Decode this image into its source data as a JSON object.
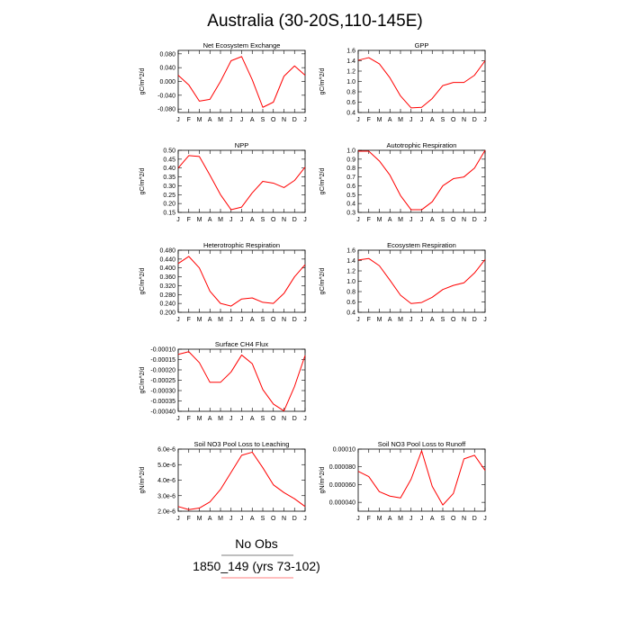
{
  "title": "Australia (30-20S,110-145E)",
  "footer": {
    "no_obs": "No Obs",
    "model": "1850_149 (yrs 73-102)",
    "legend_colors": {
      "obs": "#000000",
      "model": "#ff0000"
    }
  },
  "series_color": "#ff0000",
  "chart_data": [
    {
      "type": "line",
      "title": "Net Ecosystem Exchange",
      "ylabel": "gC/m^2/d",
      "categories": [
        "J",
        "F",
        "M",
        "A",
        "M",
        "J",
        "J",
        "A",
        "S",
        "O",
        "N",
        "D",
        "J"
      ],
      "ylim": [
        -0.09,
        0.09
      ],
      "yticks": [
        -0.08,
        -0.04,
        0.0,
        0.04,
        0.08
      ],
      "ytick_labels": [
        "-0.080",
        "-0.040",
        "0.000",
        "0.040",
        "0.080"
      ],
      "values": [
        0.018,
        -0.01,
        -0.057,
        -0.052,
        0.0,
        0.06,
        0.072,
        0.005,
        -0.075,
        -0.06,
        0.015,
        0.045,
        0.018
      ]
    },
    {
      "type": "line",
      "title": "GPP",
      "ylabel": "gC/m^2/d",
      "categories": [
        "J",
        "F",
        "M",
        "A",
        "M",
        "J",
        "J",
        "A",
        "S",
        "O",
        "N",
        "D",
        "J"
      ],
      "ylim": [
        0.4,
        1.6
      ],
      "yticks": [
        0.4,
        0.6,
        0.8,
        1.0,
        1.2,
        1.4,
        1.6
      ],
      "ytick_labels": [
        "0.4",
        "0.6",
        "0.8",
        "1.0",
        "1.2",
        "1.4",
        "1.6"
      ],
      "values": [
        1.41,
        1.46,
        1.34,
        1.07,
        0.72,
        0.49,
        0.5,
        0.67,
        0.92,
        0.98,
        0.98,
        1.12,
        1.4
      ]
    },
    {
      "type": "line",
      "title": "NPP",
      "ylabel": "gC/m^2/d",
      "categories": [
        "J",
        "F",
        "M",
        "A",
        "M",
        "J",
        "J",
        "A",
        "S",
        "O",
        "N",
        "D",
        "J"
      ],
      "ylim": [
        0.15,
        0.5
      ],
      "yticks": [
        0.15,
        0.2,
        0.25,
        0.3,
        0.35,
        0.4,
        0.45,
        0.5
      ],
      "ytick_labels": [
        "0.15",
        "0.20",
        "0.25",
        "0.30",
        "0.35",
        "0.40",
        "0.45",
        "0.50"
      ],
      "values": [
        0.4,
        0.47,
        0.465,
        0.36,
        0.25,
        0.165,
        0.18,
        0.26,
        0.325,
        0.315,
        0.29,
        0.33,
        0.405
      ]
    },
    {
      "type": "line",
      "title": "Autotrophic Respiration",
      "ylabel": "gC/m^2/d",
      "categories": [
        "J",
        "F",
        "M",
        "A",
        "M",
        "J",
        "J",
        "A",
        "S",
        "O",
        "N",
        "D",
        "J"
      ],
      "ylim": [
        0.3,
        1.0
      ],
      "yticks": [
        0.3,
        0.4,
        0.5,
        0.6,
        0.7,
        0.8,
        0.9,
        1.0
      ],
      "ytick_labels": [
        "0.3",
        "0.4",
        "0.5",
        "0.6",
        "0.7",
        "0.8",
        "0.9",
        "1.0"
      ],
      "values": [
        0.99,
        0.99,
        0.88,
        0.72,
        0.49,
        0.33,
        0.33,
        0.42,
        0.6,
        0.68,
        0.7,
        0.8,
        1.0
      ]
    },
    {
      "type": "line",
      "title": "Heterotrophic Respiration",
      "ylabel": "gC/m^2/d",
      "categories": [
        "J",
        "F",
        "M",
        "A",
        "M",
        "J",
        "J",
        "A",
        "S",
        "O",
        "N",
        "D",
        "J"
      ],
      "ylim": [
        0.2,
        0.48
      ],
      "yticks": [
        0.2,
        0.24,
        0.28,
        0.32,
        0.36,
        0.4,
        0.44,
        0.48
      ],
      "ytick_labels": [
        "0.200",
        "0.240",
        "0.280",
        "0.320",
        "0.360",
        "0.400",
        "0.440",
        "0.480"
      ],
      "values": [
        0.42,
        0.452,
        0.4,
        0.295,
        0.24,
        0.228,
        0.26,
        0.265,
        0.245,
        0.24,
        0.285,
        0.36,
        0.415
      ]
    },
    {
      "type": "line",
      "title": "Ecosystem Respiration",
      "ylabel": "gC/m^2/d",
      "categories": [
        "J",
        "F",
        "M",
        "A",
        "M",
        "J",
        "J",
        "A",
        "S",
        "O",
        "N",
        "D",
        "J"
      ],
      "ylim": [
        0.4,
        1.6
      ],
      "yticks": [
        0.4,
        0.6,
        0.8,
        1.0,
        1.2,
        1.4,
        1.6
      ],
      "ytick_labels": [
        "0.4",
        "0.6",
        "0.8",
        "1.0",
        "1.2",
        "1.4",
        "1.6"
      ],
      "values": [
        1.41,
        1.44,
        1.3,
        1.02,
        0.73,
        0.57,
        0.59,
        0.69,
        0.84,
        0.92,
        0.97,
        1.16,
        1.42
      ]
    },
    {
      "type": "line",
      "title": "Surface CH4 Flux",
      "ylabel": "gC/m^2/d",
      "categories": [
        "J",
        "F",
        "M",
        "A",
        "M",
        "J",
        "J",
        "A",
        "S",
        "O",
        "N",
        "D",
        "J"
      ],
      "ylim": [
        -0.0004,
        -0.0001
      ],
      "yticks": [
        -0.0004,
        -0.00035,
        -0.0003,
        -0.00025,
        -0.0002,
        -0.00015,
        -0.0001
      ],
      "ytick_labels": [
        "-0.00040",
        "-0.00035",
        "-0.00030",
        "-0.00025",
        "-0.00020",
        "-0.00015",
        "-0.00010"
      ],
      "values": [
        -0.000125,
        -0.000112,
        -0.000165,
        -0.00026,
        -0.00026,
        -0.00021,
        -0.000128,
        -0.00017,
        -0.000295,
        -0.000365,
        -0.000398,
        -0.00028,
        -0.00013
      ]
    },
    {
      "type": "line",
      "title": "Soil NO3 Pool Loss to Leaching",
      "ylabel": "gN/m^2/d",
      "categories": [
        "J",
        "F",
        "M",
        "A",
        "M",
        "J",
        "J",
        "A",
        "S",
        "O",
        "N",
        "D",
        "J"
      ],
      "ylim": [
        2e-06,
        6e-06
      ],
      "yticks": [
        2e-06,
        3e-06,
        4e-06,
        5e-06,
        6e-06
      ],
      "ytick_labels": [
        "2.0e-6",
        "3.0e-6",
        "4.0e-6",
        "5.0e-6",
        "6.0e-6"
      ],
      "values": [
        2.3e-06,
        2.1e-06,
        2.2e-06,
        2.6e-06,
        3.4e-06,
        4.5e-06,
        5.6e-06,
        5.8e-06,
        4.8e-06,
        3.7e-06,
        3.2e-06,
        2.8e-06,
        2.3e-06
      ]
    },
    {
      "type": "line",
      "title": "Soil NO3 Pool Loss to Runoff",
      "ylabel": "gN/m^2/d",
      "categories": [
        "J",
        "F",
        "M",
        "A",
        "M",
        "J",
        "J",
        "A",
        "S",
        "O",
        "N",
        "D",
        "J"
      ],
      "ylim": [
        3e-05,
        0.0001
      ],
      "yticks": [
        4e-05,
        6e-05,
        8e-05,
        0.0001
      ],
      "ytick_labels": [
        "0.000040",
        "0.000060",
        "0.000080",
        "0.00010"
      ],
      "values": [
        7.5e-05,
        6.9e-05,
        5.2e-05,
        4.7e-05,
        4.5e-05,
        6.6e-05,
        9.8e-05,
        5.8e-05,
        3.7e-05,
        5e-05,
        8.9e-05,
        9.3e-05,
        7.6e-05
      ]
    }
  ]
}
